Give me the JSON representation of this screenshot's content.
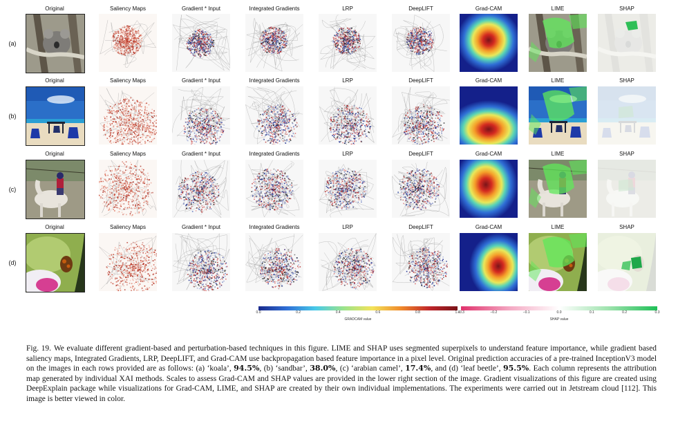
{
  "columns": [
    "Original",
    "Saliency Maps",
    "Gradient * Input",
    "Integrated Gradients",
    "LRP",
    "DeepLIFT",
    "Grad-CAM",
    "LIME",
    "SHAP"
  ],
  "rows": [
    {
      "label": "(a)",
      "subject": "koala"
    },
    {
      "label": "(b)",
      "subject": "sandbar"
    },
    {
      "label": "(c)",
      "subject": "arabian camel"
    },
    {
      "label": "(d)",
      "subject": "leaf beetle"
    }
  ],
  "gradcam_scale": {
    "ticks": [
      "0.0",
      "0.2",
      "0.4",
      "0.6",
      "0.8",
      "1.0"
    ],
    "label": "GRADCAM value",
    "colors": [
      "#1a2a8c",
      "#2f6fd6",
      "#48c9e8",
      "#9be38b",
      "#f3e35a",
      "#f08b2b",
      "#c0262a",
      "#7a1419"
    ]
  },
  "shap_scale": {
    "ticks": [
      "−0.3",
      "−0.2",
      "−0.1",
      "0.0",
      "0.1",
      "0.2",
      "0.3"
    ],
    "label": "SHAP value",
    "colors": [
      "#e0326c",
      "#f4a9c3",
      "#ffffff",
      "#9fe3ae",
      "#1fbf57"
    ]
  },
  "caption": {
    "fig_label": "Fig. 19.",
    "text_1": "We evaluate different gradient-based and perturbation-based techniques in this figure. LIME and SHAP uses segmented superpixels to understand feature importance, while gradient based saliency maps, Integrated Gradients, LRP, DeepLIFT, and Grad-CAM use backpropagation based feature importance in a pixel level. Original prediction accuracies of a pre-trained InceptionV3 model on the images in each rows provided are as follows: (a) ‘koala’,",
    "acc_a": "94.5%",
    "text_2": ", (b) ‘sandbar’,",
    "acc_b": "38.0%",
    "text_3": ", (c) ‘arabian camel’,",
    "acc_c": "17.4%",
    "text_4": ", and (d) ‘leaf beetle’,",
    "acc_d": "95.5%",
    "text_5": ". Each column represents the attribution map generated by individual XAI methods. Scales to assess Grad-CAM and SHAP values are provided in the lower right section of the image. Gradient visualizations of this figure are created using DeepExplain package while visualizations for Grad-CAM, LIME, and SHAP are created by their own individual implementations. The experiments were carried out in Jetstream cloud [112]. This image is better viewed in color."
  }
}
